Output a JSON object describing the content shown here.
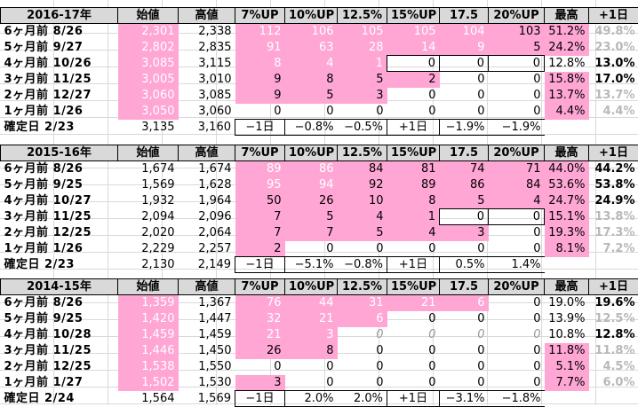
{
  "headers": [
    "始値",
    "高値",
    "7%UP",
    "10%UP",
    "12.5%",
    "15%UP",
    "17.5",
    "20%UP",
    "最高",
    "+1日"
  ],
  "blocks": [
    {
      "title": "2016-17年",
      "rows": [
        {
          "label": "6ヶ月前  8/26",
          "cells": [
            "2,301",
            "2,338",
            "112",
            "106",
            "105",
            "105",
            "104",
            "103",
            "51.2%",
            "49.8%"
          ]
        },
        {
          "label": "5ヶ月前  9/27",
          "cells": [
            "2,802",
            "2,835",
            "91",
            "63",
            "28",
            "14",
            "9",
            "5",
            "24.2%",
            "23.0%"
          ]
        },
        {
          "label": "4ヶ月前  10/26",
          "cells": [
            "3,085",
            "3,115",
            "8",
            "4",
            "1",
            "0",
            "0",
            "0",
            "12.8%",
            "13.0%"
          ]
        },
        {
          "label": "3ヶ月前  11/25",
          "cells": [
            "3,005",
            "3,010",
            "9",
            "8",
            "5",
            "2",
            "0",
            "0",
            "15.8%",
            "17.0%"
          ]
        },
        {
          "label": "2ヶ月前  12/27",
          "cells": [
            "3,060",
            "3,085",
            "9",
            "5",
            "3",
            "0",
            "0",
            "0",
            "13.7%",
            "13.7%"
          ]
        },
        {
          "label": "1ヶ月前  1/26",
          "cells": [
            "3,050",
            "3,060",
            "0",
            "0",
            "0",
            "0",
            "0",
            "0",
            "4.4%",
            "4.4%"
          ]
        },
        {
          "label": "確定日  2/23",
          "cells": [
            "3,135",
            "3,160",
            "−1日",
            "−0.8%",
            "−0.5%",
            "+1日",
            "−1.9%",
            "−1.9%",
            "",
            ""
          ]
        }
      ]
    },
    {
      "title": "2015-16年",
      "rows": [
        {
          "label": "6ヶ月前  8/26",
          "cells": [
            "1,674",
            "1,674",
            "89",
            "86",
            "84",
            "81",
            "74",
            "71",
            "44.0%",
            "44.2%"
          ]
        },
        {
          "label": "5ヶ月前  9/25",
          "cells": [
            "1,569",
            "1,628",
            "95",
            "94",
            "92",
            "89",
            "86",
            "84",
            "53.6%",
            "53.8%"
          ]
        },
        {
          "label": "4ヶ月前  10/27",
          "cells": [
            "1,932",
            "1,964",
            "50",
            "26",
            "10",
            "8",
            "5",
            "4",
            "24.7%",
            "24.9%"
          ]
        },
        {
          "label": "3ヶ月前  11/25",
          "cells": [
            "2,094",
            "2,096",
            "7",
            "5",
            "4",
            "1",
            "0",
            "0",
            "15.1%",
            "13.8%"
          ]
        },
        {
          "label": "2ヶ月前  12/25",
          "cells": [
            "2,020",
            "2,064",
            "7",
            "7",
            "5",
            "4",
            "3",
            "0",
            "19.3%",
            "17.3%"
          ]
        },
        {
          "label": "1ヶ月前  1/26",
          "cells": [
            "2,229",
            "2,257",
            "2",
            "0",
            "0",
            "0",
            "0",
            "0",
            "8.1%",
            "7.2%"
          ]
        },
        {
          "label": "確定日  2/23",
          "cells": [
            "2,130",
            "2,149",
            "−1日",
            "−5.1%",
            "−0.8%",
            "+1日",
            "0.5%",
            "1.4%",
            "",
            ""
          ]
        }
      ]
    },
    {
      "title": "2014-15年",
      "rows": [
        {
          "label": "6ヶ月前  8/26",
          "cells": [
            "1,359",
            "1,367",
            "76",
            "44",
            "31",
            "21",
            "6",
            "0",
            "19.0%",
            "19.6%"
          ]
        },
        {
          "label": "5ヶ月前  9/25",
          "cells": [
            "1,420",
            "1,447",
            "32",
            "21",
            "6",
            "0",
            "0",
            "0",
            "13.9%",
            "12.5%"
          ]
        },
        {
          "label": "4ヶ月前  10/28",
          "cells": [
            "1,459",
            "1,459",
            "21",
            "3",
            "0",
            "0",
            "0",
            "0",
            "10.8%",
            "12.8%"
          ]
        },
        {
          "label": "3ヶ月前  11/25",
          "cells": [
            "1,446",
            "1,450",
            "26",
            "8",
            "0",
            "0",
            "0",
            "0",
            "11.8%",
            "11.8%"
          ]
        },
        {
          "label": "2ヶ月前  12/25",
          "cells": [
            "1,538",
            "1,550",
            "0",
            "0",
            "0",
            "0",
            "0",
            "0",
            "5.1%",
            "4.5%"
          ]
        },
        {
          "label": "1ヶ月前  1/27",
          "cells": [
            "1,502",
            "1,530",
            "3",
            "0",
            "0",
            "0",
            "0",
            "0",
            "7.7%",
            "6.0%"
          ]
        },
        {
          "label": "確定日  2/24",
          "cells": [
            "1,564",
            "1,569",
            "−1日",
            "2.0%",
            "2.0%",
            "+1日",
            "−3.1%",
            "−1.8%",
            "",
            ""
          ]
        }
      ]
    }
  ],
  "colors": {
    "highlight": "#ffa6d5",
    "header_bg": "#d9d9d9",
    "grid": "#d9d9d9",
    "faint_text": "#b8b8b8"
  }
}
